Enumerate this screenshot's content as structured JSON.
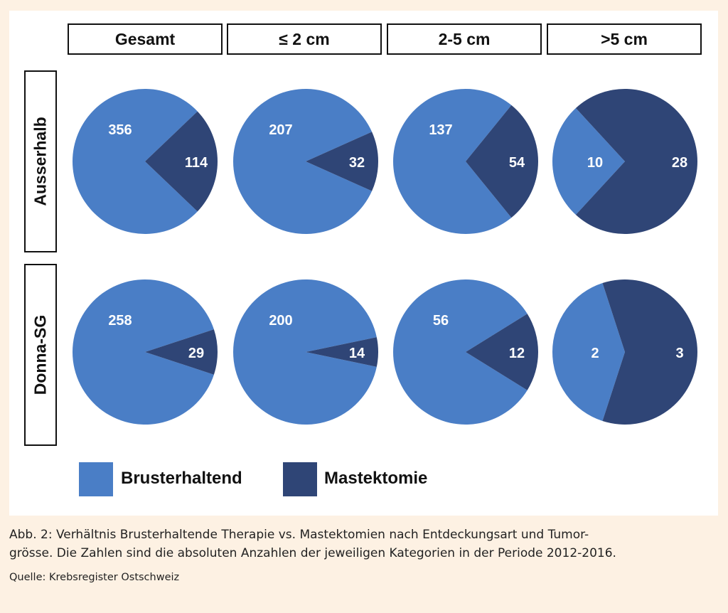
{
  "chart_data": {
    "type": "pie",
    "columns": [
      "Gesamt",
      "≤ 2 cm",
      "2-5 cm",
      ">5 cm"
    ],
    "rows": [
      "Ausserhalb",
      "Donna-SG"
    ],
    "series_names": [
      "Brusterhaltend",
      "Mastektomie"
    ],
    "colors": {
      "Brusterhaltend": "#4a7ec6",
      "Mastektomie": "#2f4576"
    },
    "pies": [
      {
        "row": "Ausserhalb",
        "column": "Gesamt",
        "values": [
          356,
          114
        ]
      },
      {
        "row": "Ausserhalb",
        "column": "≤ 2 cm",
        "values": [
          207,
          32
        ]
      },
      {
        "row": "Ausserhalb",
        "column": "2-5 cm",
        "values": [
          137,
          54
        ]
      },
      {
        "row": "Ausserhalb",
        "column": ">5 cm",
        "values": [
          10,
          28
        ]
      },
      {
        "row": "Donna-SG",
        "column": "Gesamt",
        "values": [
          258,
          29
        ]
      },
      {
        "row": "Donna-SG",
        "column": "≤ 2 cm",
        "values": [
          200,
          14
        ]
      },
      {
        "row": "Donna-SG",
        "column": "2-5 cm",
        "values": [
          56,
          12
        ]
      },
      {
        "row": "Donna-SG",
        "column": ">5 cm",
        "values": [
          2,
          3
        ]
      }
    ],
    "legend": [
      "Brusterhaltend",
      "Mastektomie"
    ]
  },
  "caption": {
    "line1": "Abb. 2: Verhältnis Brusterhaltende Therapie vs. Mastektomien nach Entdeckungsart und Tumor-",
    "line2": "grösse. Die Zahlen sind die absoluten Anzahlen der jeweiligen Kategorien in der Periode 2012-2016.",
    "source": "Quelle: Krebsregister Ostschweiz"
  }
}
